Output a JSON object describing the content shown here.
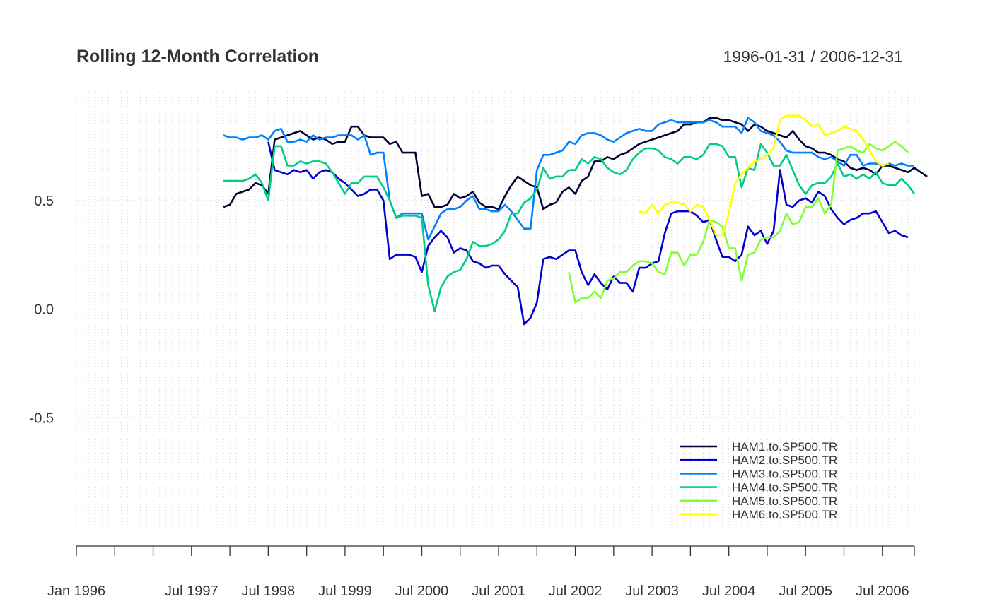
{
  "chart_data": {
    "type": "line",
    "title": "Rolling 12-Month Correlation",
    "date_range": "1996-01-31 / 2006-12-31",
    "xlabel": "",
    "ylabel": "",
    "x_start": "1996-01",
    "x_end": "2006-12",
    "ylim": [
      -1.0,
      1.0
    ],
    "y_ticks": [
      {
        "value": 0.5,
        "label": "0.5"
      },
      {
        "value": 0.0,
        "label": "0.0"
      },
      {
        "value": -0.5,
        "label": "-0.5"
      }
    ],
    "x_tick_labels": [
      {
        "date": "1996-01",
        "label": "Jan 1996"
      },
      {
        "date": "1997-07",
        "label": "Jul 1997"
      },
      {
        "date": "1998-07",
        "label": "Jul 1998"
      },
      {
        "date": "1999-07",
        "label": "Jul 1999"
      },
      {
        "date": "2000-07",
        "label": "Jul 2000"
      },
      {
        "date": "2001-07",
        "label": "Jul 2001"
      },
      {
        "date": "2002-07",
        "label": "Jul 2002"
      },
      {
        "date": "2003-07",
        "label": "Jul 2003"
      },
      {
        "date": "2004-07",
        "label": "Jul 2004"
      },
      {
        "date": "2005-07",
        "label": "Jul 2005"
      },
      {
        "date": "2006-07",
        "label": "Jul 2006"
      }
    ],
    "grid": true,
    "legend_position": "bottom-right",
    "series": [
      {
        "name": "HAM1.to.SP500.TR",
        "color": "#000033",
        "start": "1997-12",
        "values": [
          0.47,
          0.48,
          0.53,
          0.54,
          0.55,
          0.58,
          0.57,
          0.53,
          0.78,
          0.79,
          0.8,
          0.81,
          0.82,
          0.8,
          0.78,
          0.79,
          0.78,
          0.76,
          0.77,
          0.77,
          0.84,
          0.84,
          0.8,
          0.79,
          0.79,
          0.79,
          0.76,
          0.77,
          0.72,
          0.72,
          0.72,
          0.52,
          0.53,
          0.47,
          0.47,
          0.48,
          0.53,
          0.51,
          0.52,
          0.54,
          0.49,
          0.47,
          0.47,
          0.46,
          0.52,
          0.57,
          0.61,
          0.59,
          0.57,
          0.56,
          0.46,
          0.48,
          0.49,
          0.54,
          0.56,
          0.53,
          0.59,
          0.61,
          0.68,
          0.68,
          0.7,
          0.69,
          0.71,
          0.72,
          0.74,
          0.76,
          0.77,
          0.78,
          0.79,
          0.8,
          0.81,
          0.82,
          0.85,
          0.85,
          0.86,
          0.86,
          0.88,
          0.88,
          0.87,
          0.87,
          0.86,
          0.85,
          0.82,
          0.85,
          0.84,
          0.82,
          0.81,
          0.8,
          0.79,
          0.82,
          0.78,
          0.75,
          0.74,
          0.72,
          0.72,
          0.71,
          0.69,
          0.68,
          0.65,
          0.64,
          0.65,
          0.64,
          0.62,
          0.66,
          0.66,
          0.65,
          0.64,
          0.63,
          0.65,
          0.63,
          0.61
        ]
      },
      {
        "name": "HAM2.to.SP500.TR",
        "color": "#0000cc",
        "start": "1998-07",
        "values": [
          0.77,
          0.64,
          0.63,
          0.62,
          0.64,
          0.63,
          0.64,
          0.6,
          0.63,
          0.64,
          0.63,
          0.6,
          0.58,
          0.55,
          0.52,
          0.53,
          0.55,
          0.55,
          0.5,
          0.23,
          0.25,
          0.25,
          0.25,
          0.24,
          0.17,
          0.29,
          0.33,
          0.36,
          0.33,
          0.26,
          0.28,
          0.27,
          0.22,
          0.21,
          0.19,
          0.2,
          0.2,
          0.16,
          0.13,
          0.1,
          -0.07,
          -0.04,
          0.03,
          0.23,
          0.24,
          0.23,
          0.25,
          0.27,
          0.27,
          0.17,
          0.11,
          0.16,
          0.12,
          0.09,
          0.15,
          0.12,
          0.12,
          0.08,
          0.19,
          0.19,
          0.21,
          0.22,
          0.35,
          0.44,
          0.45,
          0.45,
          0.45,
          0.43,
          0.4,
          0.41,
          0.32,
          0.24,
          0.24,
          0.22,
          0.25,
          0.38,
          0.34,
          0.36,
          0.3,
          0.36,
          0.64,
          0.48,
          0.47,
          0.5,
          0.51,
          0.49,
          0.54,
          0.52,
          0.46,
          0.42,
          0.39,
          0.41,
          0.42,
          0.44,
          0.44,
          0.45,
          0.4,
          0.35,
          0.36,
          0.34,
          0.33
        ]
      },
      {
        "name": "HAM3.to.SP500.TR",
        "color": "#0080ff",
        "start": "1997-12",
        "values": [
          0.8,
          0.79,
          0.79,
          0.78,
          0.79,
          0.79,
          0.8,
          0.78,
          0.82,
          0.83,
          0.77,
          0.77,
          0.78,
          0.77,
          0.8,
          0.78,
          0.79,
          0.79,
          0.8,
          0.8,
          0.8,
          0.78,
          0.8,
          0.71,
          0.72,
          0.72,
          0.5,
          0.42,
          0.44,
          0.44,
          0.44,
          0.44,
          0.32,
          0.38,
          0.44,
          0.46,
          0.46,
          0.47,
          0.5,
          0.52,
          0.46,
          0.46,
          0.45,
          0.45,
          0.48,
          0.45,
          0.41,
          0.37,
          0.37,
          0.64,
          0.71,
          0.71,
          0.72,
          0.73,
          0.77,
          0.76,
          0.8,
          0.81,
          0.81,
          0.8,
          0.78,
          0.77,
          0.79,
          0.81,
          0.82,
          0.83,
          0.82,
          0.82,
          0.85,
          0.86,
          0.87,
          0.86,
          0.86,
          0.86,
          0.86,
          0.86,
          0.87,
          0.86,
          0.84,
          0.84,
          0.84,
          0.81,
          0.88,
          0.86,
          0.82,
          0.81,
          0.8,
          0.77,
          0.73,
          0.72,
          0.72,
          0.72,
          0.72,
          0.7,
          0.69,
          0.7,
          0.68,
          0.66,
          0.71,
          0.71,
          0.66,
          0.67,
          0.67,
          0.66,
          0.67,
          0.66,
          0.67,
          0.66,
          0.66
        ]
      },
      {
        "name": "HAM4.to.SP500.TR",
        "color": "#00cc88",
        "start": "1997-12",
        "values": [
          0.59,
          0.59,
          0.59,
          0.59,
          0.6,
          0.62,
          0.58,
          0.5,
          0.75,
          0.75,
          0.66,
          0.66,
          0.68,
          0.67,
          0.68,
          0.68,
          0.67,
          0.63,
          0.58,
          0.53,
          0.58,
          0.58,
          0.61,
          0.61,
          0.61,
          0.56,
          0.5,
          0.42,
          0.43,
          0.43,
          0.43,
          0.42,
          0.11,
          -0.01,
          0.1,
          0.15,
          0.17,
          0.18,
          0.23,
          0.31,
          0.29,
          0.29,
          0.3,
          0.32,
          0.36,
          0.44,
          0.44,
          0.49,
          0.51,
          0.55,
          0.65,
          0.6,
          0.61,
          0.61,
          0.64,
          0.64,
          0.69,
          0.67,
          0.7,
          0.69,
          0.65,
          0.63,
          0.62,
          0.64,
          0.69,
          0.72,
          0.74,
          0.74,
          0.73,
          0.7,
          0.69,
          0.67,
          0.7,
          0.7,
          0.69,
          0.71,
          0.76,
          0.76,
          0.75,
          0.7,
          0.7,
          0.56,
          0.65,
          0.64,
          0.76,
          0.72,
          0.66,
          0.66,
          0.71,
          0.64,
          0.57,
          0.53,
          0.57,
          0.58,
          0.58,
          0.61,
          0.67,
          0.61,
          0.62,
          0.6,
          0.62,
          0.6,
          0.63,
          0.58,
          0.57,
          0.57,
          0.6,
          0.57,
          0.53
        ]
      },
      {
        "name": "HAM5.to.SP500.TR",
        "color": "#80ff33",
        "start": "2002-06",
        "values": [
          0.17,
          0.03,
          0.05,
          0.05,
          0.08,
          0.05,
          0.13,
          0.14,
          0.17,
          0.17,
          0.2,
          0.22,
          0.22,
          0.21,
          0.17,
          0.16,
          0.26,
          0.26,
          0.2,
          0.25,
          0.25,
          0.31,
          0.41,
          0.4,
          0.38,
          0.28,
          0.28,
          0.13,
          0.25,
          0.26,
          0.32,
          0.33,
          0.33,
          0.36,
          0.44,
          0.39,
          0.4,
          0.47,
          0.47,
          0.51,
          0.44,
          0.48,
          0.73,
          0.74,
          0.75,
          0.73,
          0.72,
          0.76,
          0.74,
          0.73,
          0.75,
          0.77,
          0.75,
          0.72
        ]
      },
      {
        "name": "HAM6.to.SP500.TR",
        "color": "#ffff00",
        "start": "2003-05",
        "values": [
          0.45,
          0.44,
          0.48,
          0.44,
          0.48,
          0.49,
          0.49,
          0.48,
          0.45,
          0.48,
          0.47,
          0.41,
          0.34,
          0.34,
          0.44,
          0.58,
          0.62,
          0.65,
          0.68,
          0.69,
          0.71,
          0.74,
          0.87,
          0.89,
          0.89,
          0.89,
          0.87,
          0.84,
          0.85,
          0.8,
          0.81,
          0.82,
          0.84,
          0.83,
          0.82,
          0.78,
          0.73,
          0.68,
          0.66,
          0.67
        ]
      }
    ]
  }
}
